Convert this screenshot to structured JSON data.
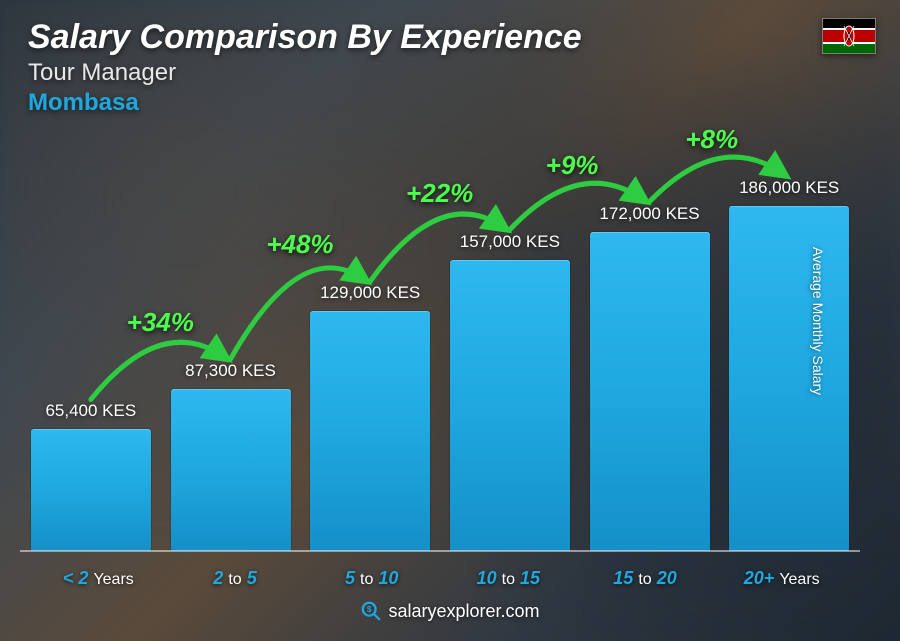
{
  "header": {
    "title": "Salary Comparison By Experience",
    "subtitle": "Tour Manager",
    "location": "Mombasa",
    "location_color": "#1fa8e0"
  },
  "flag": {
    "stripes": [
      "#000000",
      "#ffffff",
      "#bb0000",
      "#ffffff",
      "#006600"
    ],
    "stripe_heights": [
      10,
      2,
      12,
      2,
      10
    ]
  },
  "y_axis_label": "Average Monthly Salary",
  "chart": {
    "type": "bar",
    "bar_color": "#1fa8e0",
    "bar_gradient_top": "#2fb8f0",
    "bar_gradient_bottom": "#158fc8",
    "max_value": 186000,
    "currency": "KES",
    "value_color": "#ffffff",
    "value_fontsize": 17,
    "bars": [
      {
        "category_pre": "<",
        "category_num": "2",
        "category_suf": "Years",
        "value": 65400,
        "label": "65,400 KES",
        "height_pct": 35.2
      },
      {
        "category_pre": "",
        "category_num": "2",
        "category_mid": "to",
        "category_num2": "5",
        "value": 87300,
        "label": "87,300 KES",
        "height_pct": 46.9
      },
      {
        "category_pre": "",
        "category_num": "5",
        "category_mid": "to",
        "category_num2": "10",
        "value": 129000,
        "label": "129,000 KES",
        "height_pct": 69.4
      },
      {
        "category_pre": "",
        "category_num": "10",
        "category_mid": "to",
        "category_num2": "15",
        "value": 157000,
        "label": "157,000 KES",
        "height_pct": 84.4
      },
      {
        "category_pre": "",
        "category_num": "15",
        "category_mid": "to",
        "category_num2": "20",
        "value": 172000,
        "label": "172,000 KES",
        "height_pct": 92.5
      },
      {
        "category_pre": "",
        "category_num": "20+",
        "category_suf": "Years",
        "value": 186000,
        "label": "186,000 KES",
        "height_pct": 100.0
      }
    ],
    "arcs": [
      {
        "from": 0,
        "to": 1,
        "label": "+34%"
      },
      {
        "from": 1,
        "to": 2,
        "label": "+48%"
      },
      {
        "from": 2,
        "to": 3,
        "label": "+22%"
      },
      {
        "from": 3,
        "to": 4,
        "label": "+9%"
      },
      {
        "from": 4,
        "to": 5,
        "label": "+8%"
      }
    ],
    "arc_color": "#2ecc40",
    "arc_label_color": "#4dff4d",
    "arc_label_fontsize": 26,
    "arc_stroke_width": 5
  },
  "x_axis": {
    "num_color": "#1fa8e0",
    "word_color": "#ffffff"
  },
  "footer": {
    "text": "salaryexplorer.com",
    "icon_color": "#1fa8e0"
  }
}
